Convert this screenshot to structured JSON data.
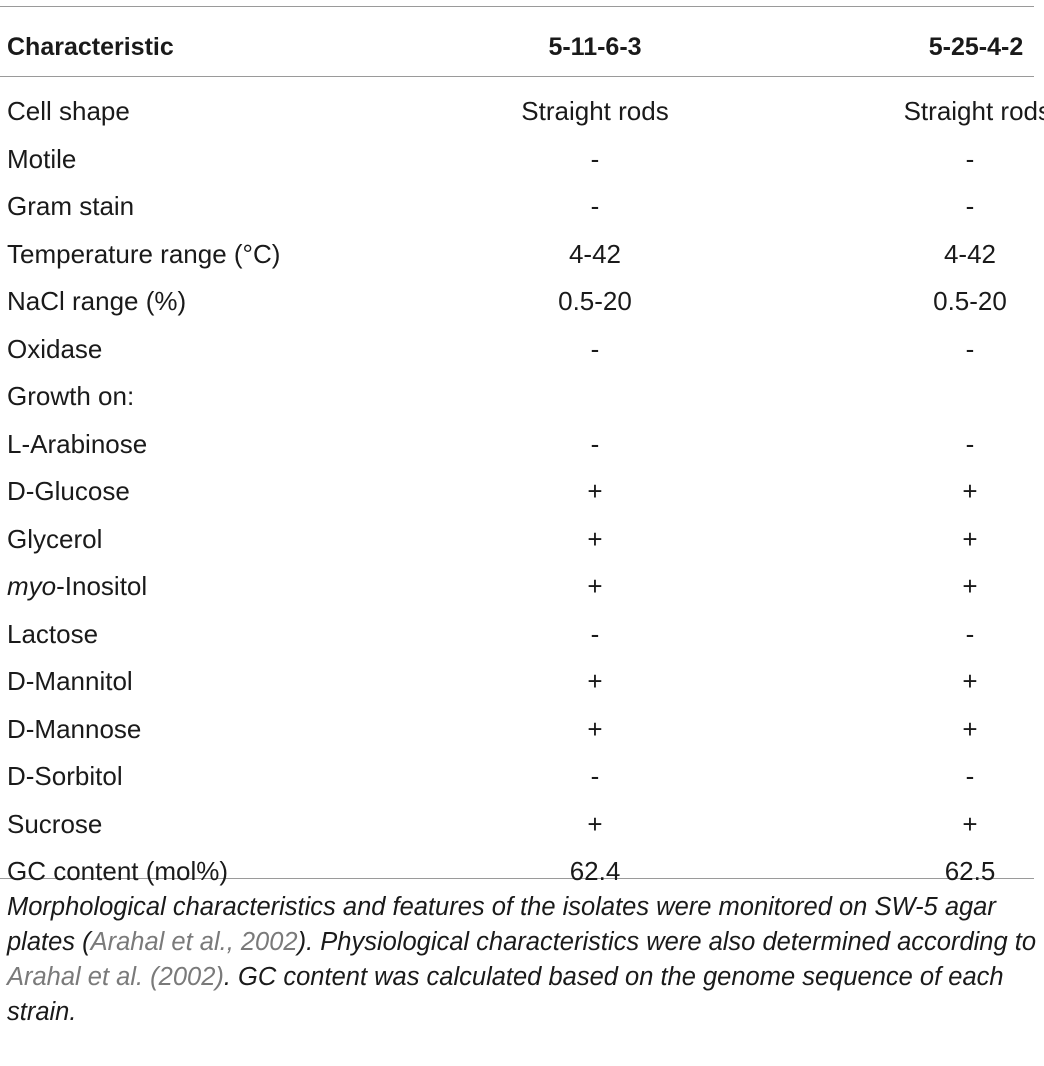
{
  "table": {
    "headers": [
      "Characteristic",
      "5-11-6-3",
      "5-25-4-2"
    ],
    "rows": [
      {
        "label": "Cell shape",
        "a": "Straight rods",
        "b": "Straight rods"
      },
      {
        "label": "Motile",
        "a": "-",
        "b": "-"
      },
      {
        "label": "Gram stain",
        "a": "-",
        "b": "-"
      },
      {
        "label": "Temperature range (°C)",
        "a": "4-42",
        "b": "4-42"
      },
      {
        "label": "NaCl range (%)",
        "a": "0.5-20",
        "b": "0.5-20"
      },
      {
        "label": "Oxidase",
        "a": "-",
        "b": "-"
      },
      {
        "label": "Growth on:",
        "a": "",
        "b": ""
      },
      {
        "label": "L-Arabinose",
        "a": "-",
        "b": "-"
      },
      {
        "label": "D-Glucose",
        "a": "+",
        "b": "+"
      },
      {
        "label": "Glycerol",
        "a": "+",
        "b": "+"
      },
      {
        "label_italic": "myo",
        "label": "-Inositol",
        "a": "+",
        "b": "+"
      },
      {
        "label": "Lactose",
        "a": "-",
        "b": "-"
      },
      {
        "label": "D-Mannitol",
        "a": "+",
        "b": "+"
      },
      {
        "label": "D-Mannose",
        "a": "+",
        "b": "+"
      },
      {
        "label": "D-Sorbitol",
        "a": "-",
        "b": "-"
      },
      {
        "label": "Sucrose",
        "a": "+",
        "b": "+"
      },
      {
        "label": "GC content (mol%)",
        "a": "62.4",
        "b": "62.5"
      }
    ]
  },
  "caption": {
    "p1": "Morphological characteristics and features of the isolates were monitored on SW-5 agar plates (",
    "cite1": "Arahal et al., 2002",
    "p2": "). Physiological characteristics were also determined according to ",
    "cite2": "Arahal et al. (2002)",
    "p3": ". GC content was calculated based on the genome sequence of each strain."
  },
  "colors": {
    "rule": "#9a9a9a",
    "citation": "#7a7a7a",
    "text": "#1a1a1a"
  }
}
